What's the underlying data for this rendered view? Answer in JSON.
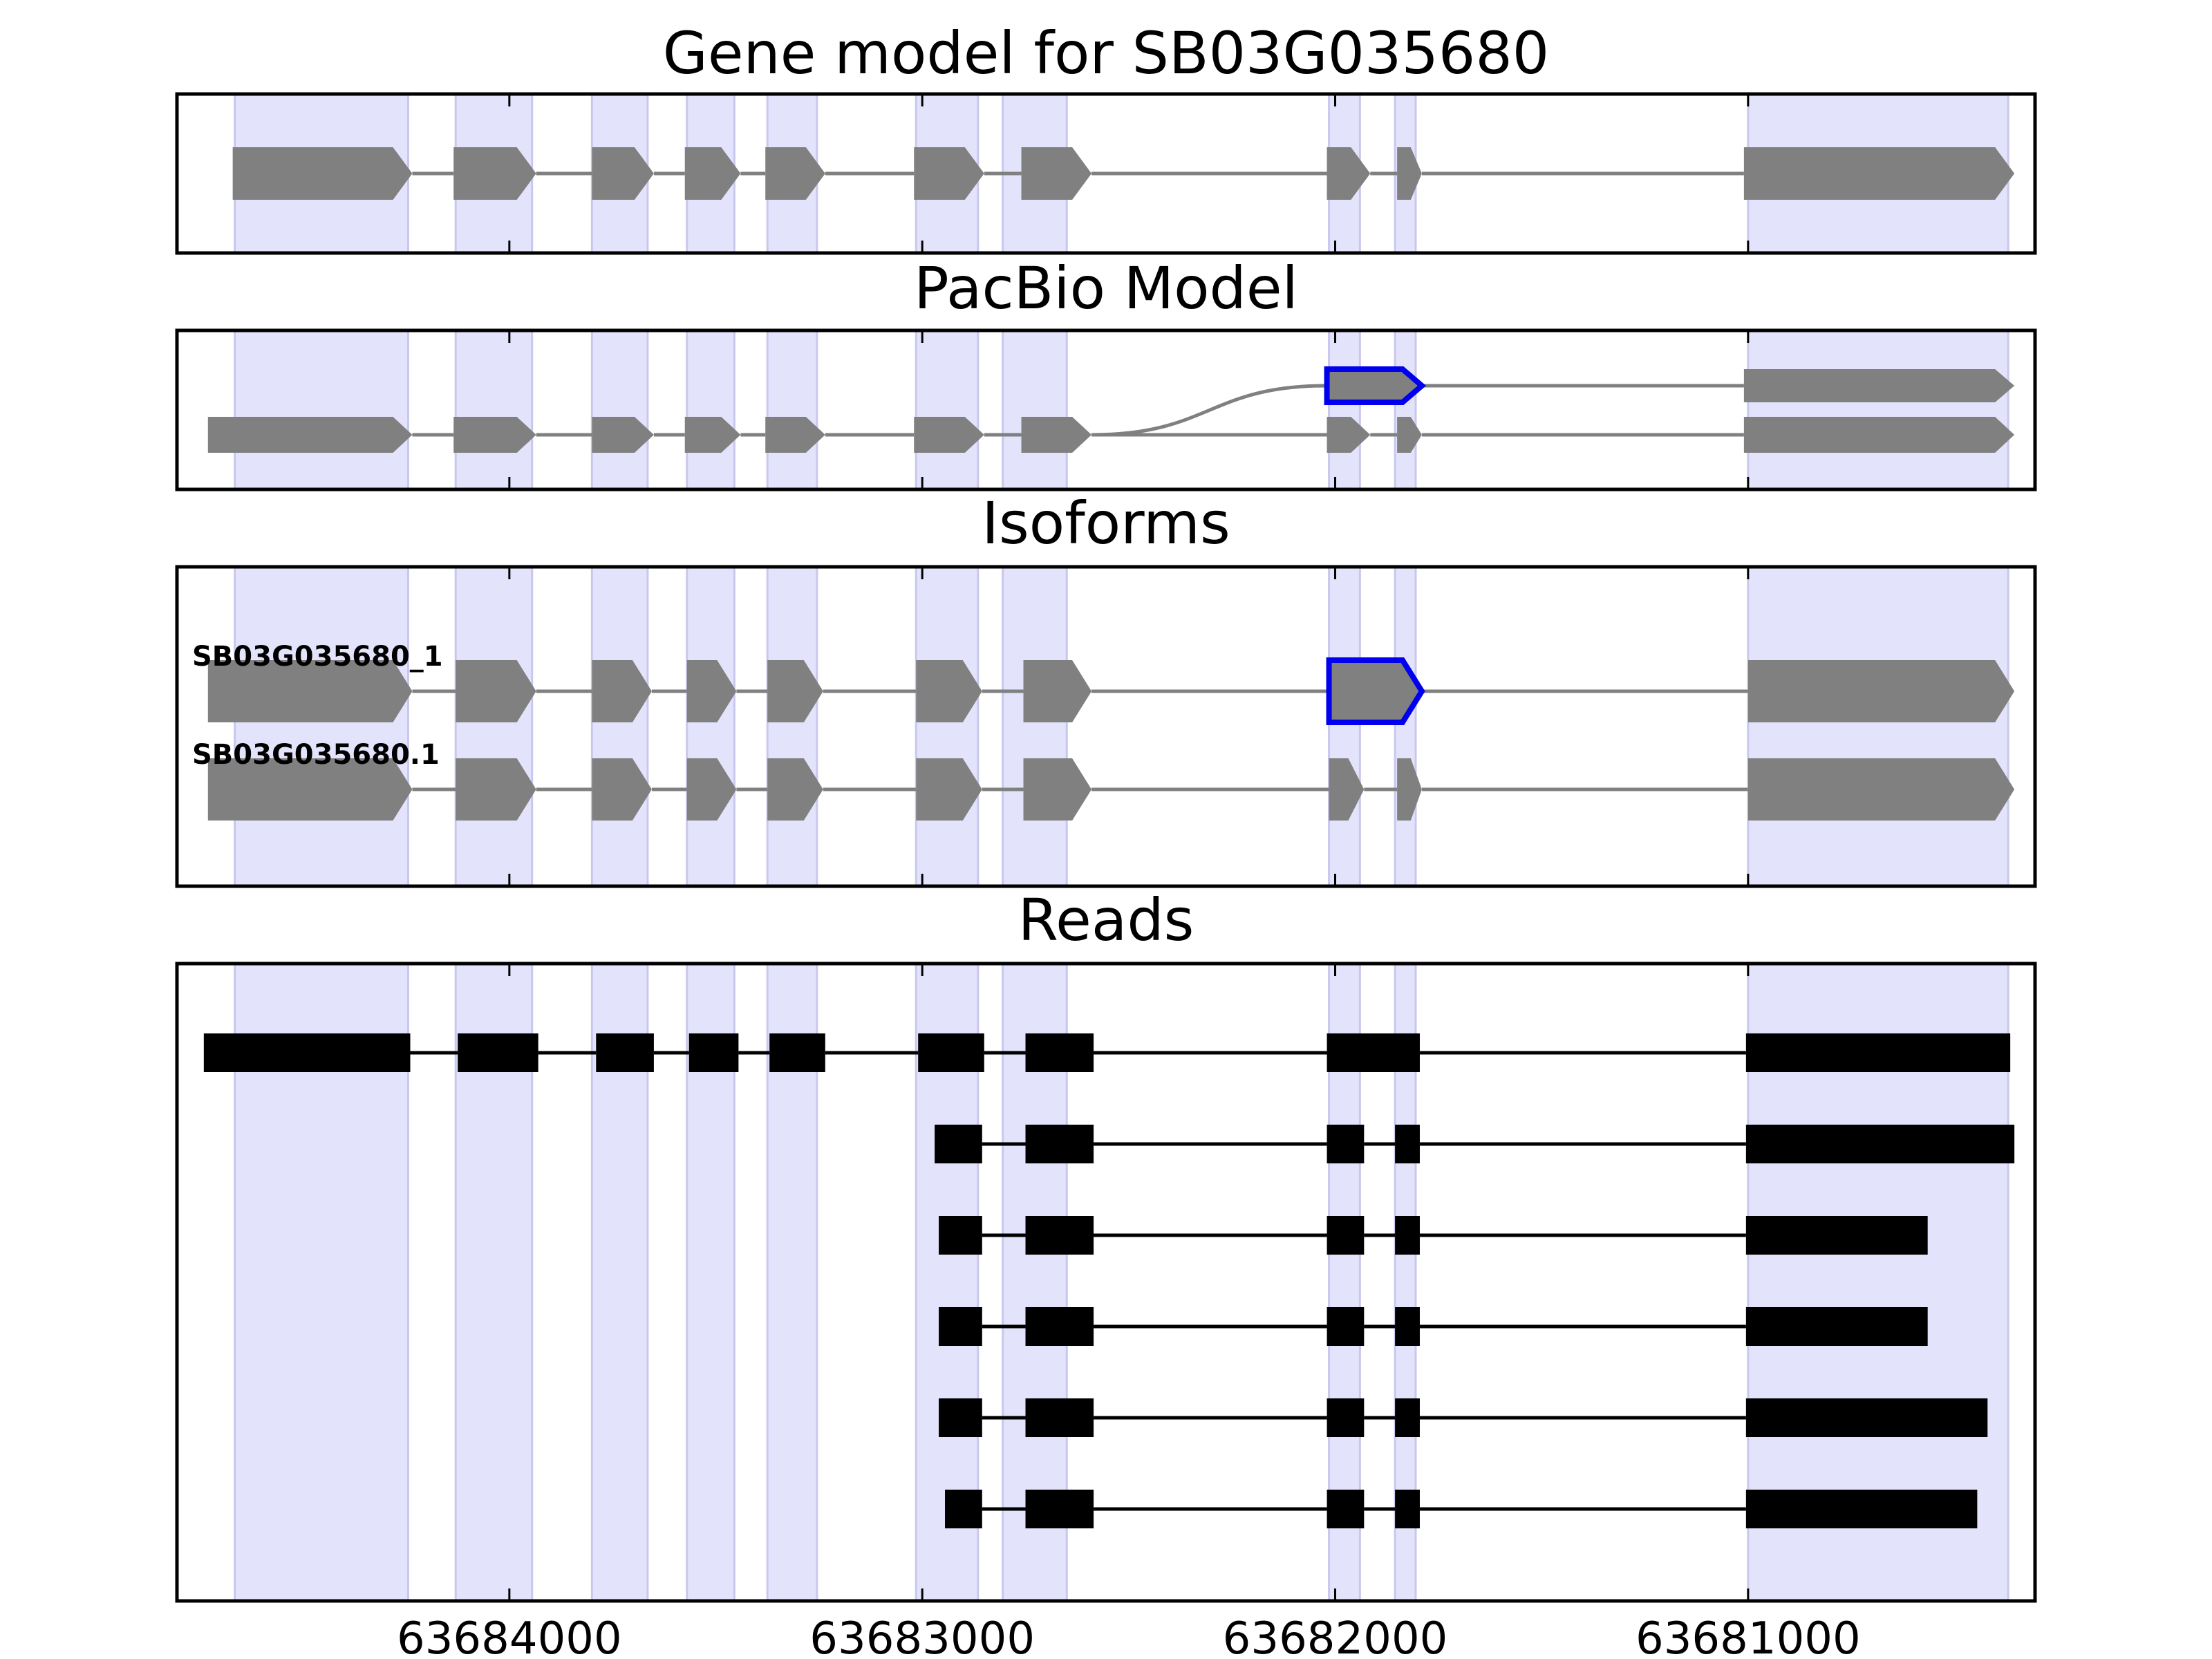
{
  "figure": {
    "panels": [
      {
        "id": "gene",
        "title": "Gene model for SB03G035680"
      },
      {
        "id": "pacbio",
        "title": "PacBio Model"
      },
      {
        "id": "isoforms",
        "title": "Isoforms"
      },
      {
        "id": "reads",
        "title": "Reads"
      }
    ],
    "x_axis": {
      "reversed": true,
      "ticks": [
        {
          "value": 63684000,
          "label": "63684000"
        },
        {
          "value": 63683000,
          "label": "63683000"
        },
        {
          "value": 63682000,
          "label": "63682000"
        },
        {
          "value": 63681000,
          "label": "63681000"
        }
      ]
    },
    "colors": {
      "shade": "#e3e3fb",
      "shade_edge": "#c8c8ee",
      "exon": "#808080",
      "intron": "#808080",
      "highlight": "#0000ee",
      "read": "#000000"
    }
  },
  "chart_data": {
    "type": "gene-structure",
    "orientation": "x decreases left to right",
    "shaded_exon_regions": [
      [
        63684665,
        63684245
      ],
      [
        63684130,
        63683945
      ],
      [
        63683800,
        63683665
      ],
      [
        63683570,
        63683455
      ],
      [
        63683375,
        63683255
      ],
      [
        63683015,
        63682865
      ],
      [
        63682805,
        63682650
      ],
      [
        63682015,
        63681940
      ],
      [
        63681855,
        63681805
      ],
      [
        63681000,
        63680370
      ]
    ],
    "gene_model": [
      {
        "track": 0,
        "exons": [
          [
            63684670,
            63684235
          ],
          [
            63684135,
            63683935
          ],
          [
            63683800,
            63683650
          ],
          [
            63683575,
            63683440
          ],
          [
            63683380,
            63683235
          ],
          [
            63683020,
            63682850
          ],
          [
            63682760,
            63682590
          ],
          [
            63682020,
            63681915
          ],
          [
            63681850,
            63681790
          ],
          [
            63681010,
            63680355
          ]
        ]
      }
    ],
    "pacbio_model": [
      {
        "track": 0,
        "highlight_exon": 0,
        "exons": [
          [
            63682020,
            63681790
          ],
          [
            63681010,
            63680355
          ]
        ]
      },
      {
        "track": 1,
        "exons": [
          [
            63684730,
            63684235
          ],
          [
            63684135,
            63683935
          ],
          [
            63683800,
            63683650
          ],
          [
            63683575,
            63683440
          ],
          [
            63683380,
            63683235
          ],
          [
            63683020,
            63682850
          ],
          [
            63682760,
            63682590
          ],
          [
            63682020,
            63681915
          ],
          [
            63681850,
            63681790
          ],
          [
            63681010,
            63680355
          ]
        ]
      }
    ],
    "isoforms": [
      {
        "name": "SB03G035680_1",
        "highlight_exon": 7,
        "exons": [
          [
            63684730,
            63684235
          ],
          [
            63684130,
            63683935
          ],
          [
            63683800,
            63683655
          ],
          [
            63683570,
            63683450
          ],
          [
            63683375,
            63683240
          ],
          [
            63683015,
            63682855
          ],
          [
            63682755,
            63682590
          ],
          [
            63682015,
            63681790
          ],
          [
            63681000,
            63680355
          ]
        ]
      },
      {
        "name": "SB03G035680.1",
        "exons": [
          [
            63684730,
            63684235
          ],
          [
            63684130,
            63683935
          ],
          [
            63683800,
            63683655
          ],
          [
            63683570,
            63683450
          ],
          [
            63683375,
            63683240
          ],
          [
            63683015,
            63682855
          ],
          [
            63682755,
            63682590
          ],
          [
            63682015,
            63681930
          ],
          [
            63681850,
            63681790
          ],
          [
            63681000,
            63680355
          ]
        ]
      }
    ],
    "reads": [
      {
        "blocks": [
          [
            63684740,
            63684240
          ],
          [
            63684125,
            63683930
          ],
          [
            63683790,
            63683650
          ],
          [
            63683565,
            63683445
          ],
          [
            63683370,
            63683235
          ],
          [
            63683010,
            63682850
          ],
          [
            63682750,
            63682585
          ],
          [
            63682020,
            63681795
          ],
          [
            63681005,
            63680365
          ]
        ]
      },
      {
        "blocks": [
          [
            63682970,
            63682855
          ],
          [
            63682750,
            63682585
          ],
          [
            63682020,
            63681930
          ],
          [
            63681855,
            63681795
          ],
          [
            63681005,
            63680355
          ]
        ]
      },
      {
        "blocks": [
          [
            63682960,
            63682855
          ],
          [
            63682750,
            63682585
          ],
          [
            63682020,
            63681930
          ],
          [
            63681855,
            63681795
          ],
          [
            63681005,
            63680565
          ]
        ]
      },
      {
        "blocks": [
          [
            63682960,
            63682855
          ],
          [
            63682750,
            63682585
          ],
          [
            63682020,
            63681930
          ],
          [
            63681855,
            63681795
          ],
          [
            63681005,
            63680565
          ]
        ]
      },
      {
        "blocks": [
          [
            63682960,
            63682855
          ],
          [
            63682750,
            63682585
          ],
          [
            63682020,
            63681930
          ],
          [
            63681855,
            63681795
          ],
          [
            63681005,
            63680420
          ]
        ]
      },
      {
        "blocks": [
          [
            63682945,
            63682855
          ],
          [
            63682750,
            63682585
          ],
          [
            63682020,
            63681930
          ],
          [
            63681855,
            63681795
          ],
          [
            63681005,
            63680445
          ]
        ]
      }
    ]
  }
}
